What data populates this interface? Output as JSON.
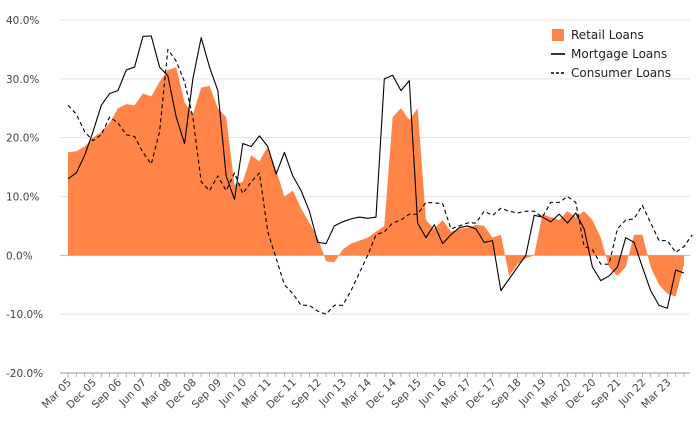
{
  "chart_data": {
    "type": "area",
    "ylim": [
      -20,
      40
    ],
    "yticks": [
      "-20.0%",
      "-10.0%",
      "0.0%",
      "10.0%",
      "20.0%",
      "30.0%",
      "40.0%"
    ],
    "yticks_values": [
      -20,
      -10,
      0,
      10,
      20,
      30,
      40
    ],
    "xticks": [
      "Mar 05",
      "Dec 05",
      "Sep 06",
      "Jun 07",
      "Mar 08",
      "Dec 08",
      "Sep 09",
      "Jun 10",
      "Mar 11",
      "Dec 11",
      "Sep 12",
      "Jun 13",
      "Mar 14",
      "Dec 14",
      "Sep 15",
      "Jun 16",
      "Mar 17",
      "Dec 17",
      "Sep 18",
      "Jun 19",
      "Mar 20",
      "Dec 20",
      "Sep 21",
      "Jun 22",
      "Mar 23"
    ],
    "grid": true,
    "legend_position": "top-right",
    "series": [
      {
        "name": "Retail Loans",
        "kind": "area",
        "color": "#FF8448",
        "values": [
          17.5,
          17.7,
          18.5,
          20,
          21,
          22.5,
          25,
          25.7,
          25.5,
          27.5,
          27,
          29.5,
          31.5,
          32,
          26,
          24,
          28.5,
          28.8,
          25,
          23.5,
          12,
          12.5,
          17,
          16,
          18.5,
          14.5,
          10,
          11,
          8,
          5.5,
          3,
          -1,
          -1.2,
          1,
          2,
          2.5,
          3,
          4,
          5,
          23.5,
          25,
          23,
          25,
          6,
          4.5,
          6,
          4,
          4.5,
          4.7,
          5.2,
          5,
          3,
          3.5,
          -3.5,
          -1.5,
          -0.5,
          0,
          7,
          6.5,
          6,
          7.5,
          6.5,
          7.5,
          6,
          3,
          -2,
          -3.5,
          -2,
          3.5,
          3.5,
          -2,
          -5,
          -6.5,
          -7,
          -1.5
        ]
      },
      {
        "name": "Mortgage Loans",
        "kind": "line",
        "color": "#000000",
        "values": [
          13,
          14,
          17,
          21,
          25.5,
          27.5,
          28,
          31.5,
          32,
          37.2,
          37.3,
          32,
          30.5,
          23.5,
          19,
          30,
          37,
          32,
          28,
          13.5,
          9.5,
          19,
          18.5,
          20.3,
          18.5,
          13.8,
          17.5,
          13.5,
          11,
          7.5,
          2.2,
          2,
          5,
          5.7,
          6.2,
          6.5,
          6.3,
          6.5,
          30,
          30.6,
          28,
          29.7,
          5.5,
          3,
          5.2,
          2,
          3.5,
          4.7,
          5,
          4.5,
          2.2,
          2.5,
          -6,
          -4,
          -2,
          0,
          6.8,
          6.5,
          5.7,
          7,
          5.5,
          7.2,
          4.5,
          -2,
          -4.3,
          -3.5,
          -2,
          3,
          2.2,
          -2,
          -6,
          -8.5,
          -9,
          -2.5,
          -3
        ]
      },
      {
        "name": "Consumer Loans",
        "kind": "dashed-line",
        "color": "#000000",
        "values": [
          25.5,
          24,
          21,
          19.5,
          20.5,
          23.5,
          22.5,
          20.5,
          20.2,
          17.5,
          15.5,
          21,
          35,
          33,
          29.5,
          23.5,
          12.5,
          11,
          13.5,
          11,
          14,
          10.5,
          12.5,
          14,
          4,
          -0.5,
          -5,
          -6.5,
          -8.5,
          -8.5,
          -9.5,
          -10,
          -8.5,
          -8.5,
          -6,
          -3,
          0,
          3.5,
          4,
          5.5,
          6,
          7,
          7,
          9,
          8.9,
          8.8,
          4.5,
          5,
          5.5,
          5.5,
          7.5,
          6.8,
          8,
          7.5,
          7.2,
          7.5,
          7.5,
          6.5,
          9,
          9,
          10,
          9,
          1.5,
          1,
          -1.5,
          -1.5,
          4.5,
          6,
          6.2,
          8.5,
          5.5,
          2.5,
          2.5,
          0.5,
          1.5,
          3.5
        ]
      }
    ]
  }
}
